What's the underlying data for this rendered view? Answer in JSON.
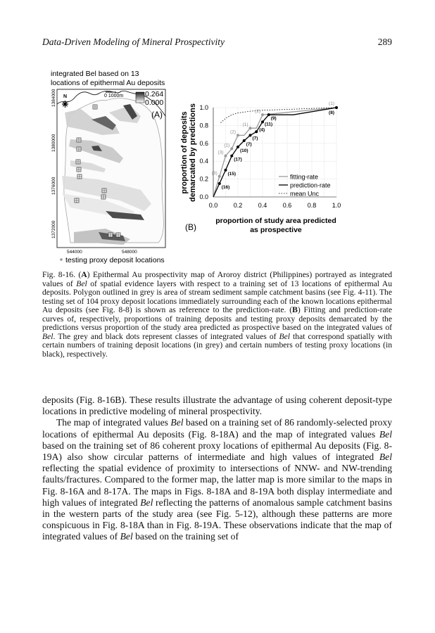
{
  "header": {
    "title": "Data-Driven Modeling of Mineral Prospectivity",
    "page_number": "289"
  },
  "figure": {
    "map": {
      "title_line1": "integrated Bel based on 13",
      "title_line2": "locations of epithermal Au deposits",
      "north_label": "N",
      "scale_label": "0   1000m",
      "legend_max": "0.264",
      "legend_min": "0.000",
      "panel_label": "(A)",
      "y_ticks": [
        "1384000",
        "1380000",
        "1376000",
        "1372000"
      ],
      "x_ticks": [
        "544000",
        "548000"
      ],
      "points_legend": "testing proxy deposit locations",
      "colors": {
        "outline": "#000000",
        "catchment": "#9a9a9a",
        "high": "#202020",
        "low": "#e6e6e6"
      }
    },
    "chart_panel_label": "(B)"
  },
  "chart_data": {
    "type": "line",
    "xlabel": "proportion of study area predicted as prospective",
    "xlabel_line1": "proportion of study area predicted",
    "xlabel_line2": "as prospective",
    "ylabel_line1": "proportion of deposits",
    "ylabel_line2": "demarcated by predictions",
    "xlim": [
      0,
      1
    ],
    "ylim": [
      0,
      1
    ],
    "x_ticks": [
      "0.0",
      "0.2",
      "0.4",
      "0.6",
      "0.8",
      "1.0"
    ],
    "y_ticks": [
      "0.0",
      "0.2",
      "0.4",
      "0.6",
      "0.8",
      "1.0"
    ],
    "grid": true,
    "legend_placement": "bottom-right",
    "series": [
      {
        "name": "fitting-rate",
        "color": "#9a9a9a",
        "style": "solid",
        "points": [
          [
            0,
            0
          ],
          [
            0.05,
            0.23
          ],
          [
            0.1,
            0.46
          ],
          [
            0.15,
            0.54
          ],
          [
            0.2,
            0.69
          ],
          [
            0.25,
            0.69
          ],
          [
            0.3,
            0.77
          ],
          [
            0.35,
            0.77
          ],
          [
            0.4,
            0.92
          ],
          [
            1.0,
            1.0
          ]
        ],
        "dots": [
          [
            0.05,
            0.23,
            "(3)"
          ],
          [
            0.1,
            0.46,
            "(3)"
          ],
          [
            0.15,
            0.54,
            "(1)"
          ],
          [
            0.2,
            0.69,
            "(2)"
          ],
          [
            0.3,
            0.77,
            "(1)"
          ],
          [
            0.4,
            0.92,
            "(2)"
          ],
          [
            1.0,
            1.0,
            "(1)"
          ]
        ]
      },
      {
        "name": "prediction-rate",
        "color": "#000000",
        "style": "solid",
        "points": [
          [
            0,
            0
          ],
          [
            0.05,
            0.15
          ],
          [
            0.1,
            0.3
          ],
          [
            0.15,
            0.46
          ],
          [
            0.2,
            0.56
          ],
          [
            0.25,
            0.63
          ],
          [
            0.3,
            0.69
          ],
          [
            0.35,
            0.73
          ],
          [
            0.4,
            0.84
          ],
          [
            0.45,
            0.92
          ],
          [
            0.65,
            0.92
          ],
          [
            1.0,
            1.0
          ]
        ],
        "dots": [
          [
            0.05,
            0.15,
            "(16)"
          ],
          [
            0.1,
            0.3,
            "(15)"
          ],
          [
            0.15,
            0.46,
            "(17)"
          ],
          [
            0.2,
            0.56,
            "(10)"
          ],
          [
            0.25,
            0.63,
            "(7)"
          ],
          [
            0.3,
            0.69,
            "(7)"
          ],
          [
            0.35,
            0.73,
            "(4)"
          ],
          [
            0.4,
            0.84,
            "(11)"
          ],
          [
            0.45,
            0.92,
            "(9)"
          ],
          [
            1.0,
            1.0,
            "(8)"
          ]
        ]
      },
      {
        "name": "mean Unc",
        "color": "#000000",
        "style": "dotted",
        "points": [
          [
            0.06,
            0.83
          ],
          [
            0.1,
            0.88
          ],
          [
            0.15,
            0.92
          ],
          [
            0.2,
            0.94
          ],
          [
            0.3,
            0.96
          ],
          [
            0.4,
            0.97
          ],
          [
            0.6,
            0.98
          ],
          [
            0.8,
            0.99
          ],
          [
            1.0,
            1.0
          ]
        ]
      }
    ]
  },
  "caption": [
    {
      "t": "Fig. 8-16. ("
    },
    {
      "t": "A",
      "b": true
    },
    {
      "t": ") Epithermal Au prospectivity map of Aroroy district (Philippines) portrayed as integrated values of "
    },
    {
      "t": "Bel",
      "i": true
    },
    {
      "t": " of spatial evidence layers with respect to a training set of 13 locations of epithermal Au deposits. Polygon outlined in grey is area of stream sediment sample catchment basins (see Fig. 4-11). The testing set of 104 proxy deposit locations immediately surrounding each of the known locations epithermal Au deposits (see Fig. 8-8) is shown as reference to the prediction-rate. ("
    },
    {
      "t": "B",
      "b": true
    },
    {
      "t": ") Fitting and prediction-rate curves of, respectively, proportions of training deposits and testing proxy deposits demarcated by the predictions versus proportion of the study area predicted as prospective based on the integrated values of "
    },
    {
      "t": "Bel",
      "i": true
    },
    {
      "t": ". The grey and black dots represent classes of integrated values of "
    },
    {
      "t": "Bel",
      "i": true
    },
    {
      "t": " that correspond spatially with certain numbers of training deposit locations (in grey) and certain numbers of testing proxy locations (in black), respectively."
    }
  ],
  "body": [
    {
      "indent": false,
      "runs": [
        {
          "t": "deposits (Fig. 8-16B). These results illustrate the advantage of using coherent deposit-type locations in predictive modeling of mineral prospectivity."
        }
      ]
    },
    {
      "indent": true,
      "runs": [
        {
          "t": "The map of integrated values "
        },
        {
          "t": "Bel",
          "i": true
        },
        {
          "t": " based on a training set of 86 randomly-selected proxy locations of epithermal Au deposits (Fig. 8-18A) and the map of integrated values "
        },
        {
          "t": "Bel",
          "i": true
        },
        {
          "t": " based on the training set of 86 coherent proxy locations of epithermal Au deposits (Fig. 8-19A) also show circular patterns of intermediate and high values of integrated "
        },
        {
          "t": "Bel",
          "i": true
        },
        {
          "t": " reflecting the spatial evidence of proximity to intersections of NNW- and NW-trending faults/fractures. Compared to the former map, the latter map is more similar to the maps in Fig. 8-16A and 8-17A. The maps in Figs. 8-18A and 8-19A both display intermediate and high values of integrated "
        },
        {
          "t": "Bel",
          "i": true
        },
        {
          "t": " reflecting the patterns of anomalous sample catchment basins in the western parts of the study area (see Fig. 5-12), although these patterns are more conspicuous in Fig. 8-18A than in Fig. 8-19A. These observations indicate that the map of integrated values of "
        },
        {
          "t": "Bel",
          "i": true
        },
        {
          "t": " based on the training set of"
        }
      ]
    }
  ]
}
